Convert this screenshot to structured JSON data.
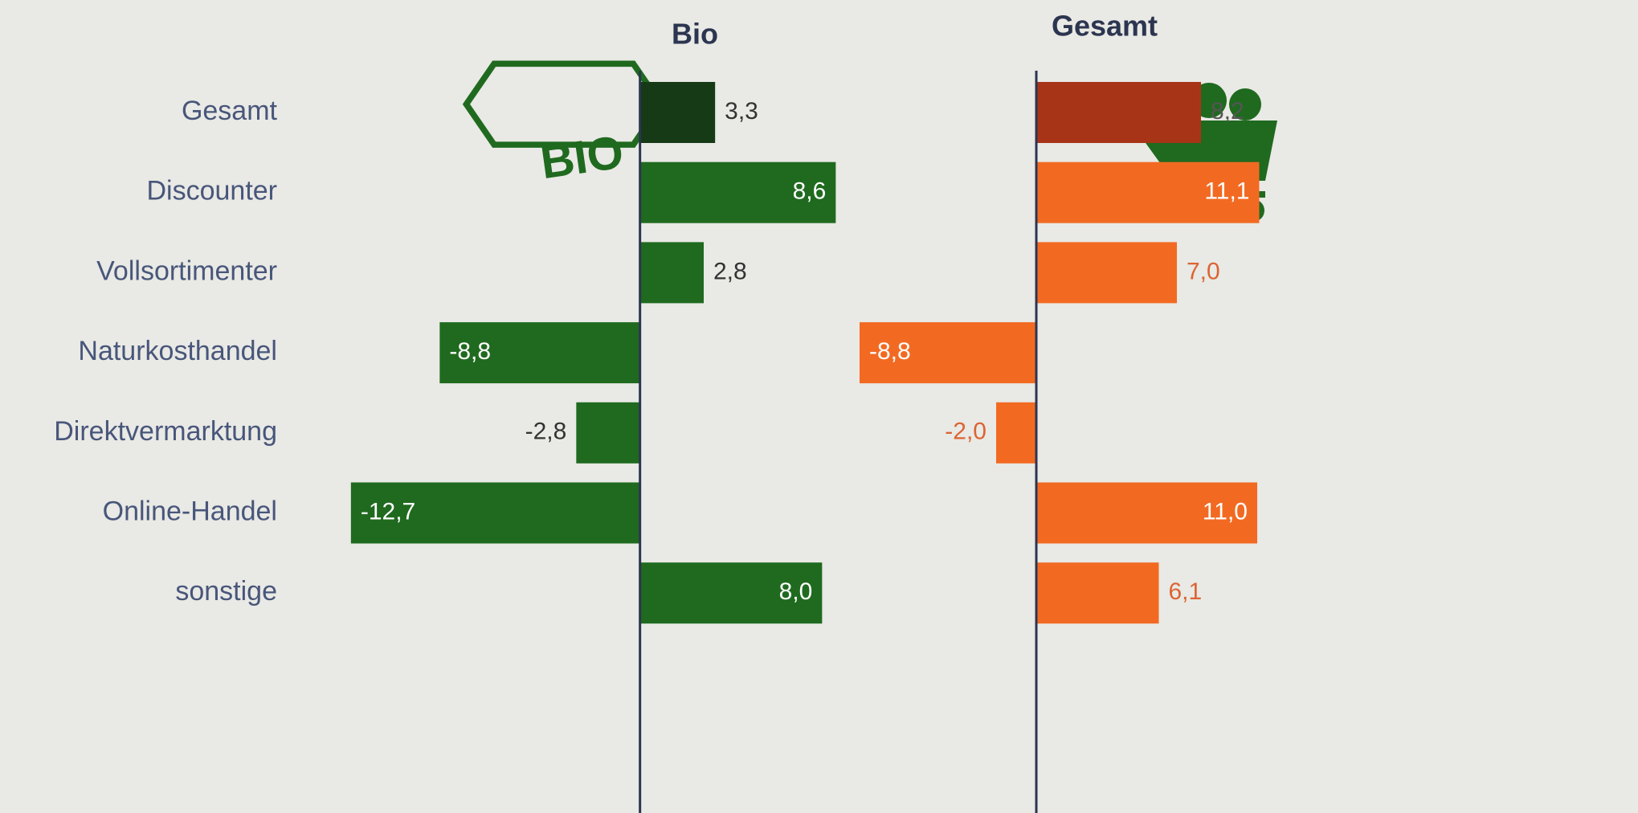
{
  "chart_data": {
    "type": "bar",
    "orientation": "horizontal",
    "categories": [
      "Gesamt",
      "Discounter",
      "Vollsortimenter",
      "Naturkosthandel",
      "Direktvermarktung",
      "Online-Handel",
      "sonstige"
    ],
    "series": [
      {
        "name": "Bio",
        "colors": [
          "#163a16",
          "#1f6a1f",
          "#1f6a1f",
          "#1f6a1f",
          "#1f6a1f",
          "#1f6a1f",
          "#1f6a1f"
        ],
        "values": [
          3.3,
          8.6,
          2.8,
          -8.8,
          -2.8,
          -12.7,
          8.0
        ],
        "value_labels": [
          "3,3",
          "8,6",
          "2,8",
          "-8,8",
          "-2,8",
          "-12,7",
          "8,0"
        ],
        "xlim": [
          -14,
          10
        ]
      },
      {
        "name": "Gesamt",
        "colors": [
          "#a83418",
          "#f26a22",
          "#f26a22",
          "#f26a22",
          "#f26a22",
          "#f26a22",
          "#f26a22"
        ],
        "values": [
          8.2,
          11.1,
          7.0,
          -8.8,
          -2.0,
          11.0,
          6.1
        ],
        "value_labels": [
          "8,2",
          "11,1",
          "7,0",
          "-8,8",
          "-2,0",
          "11,0",
          "6,1"
        ],
        "xlim": [
          -10,
          11
        ]
      }
    ]
  }
}
